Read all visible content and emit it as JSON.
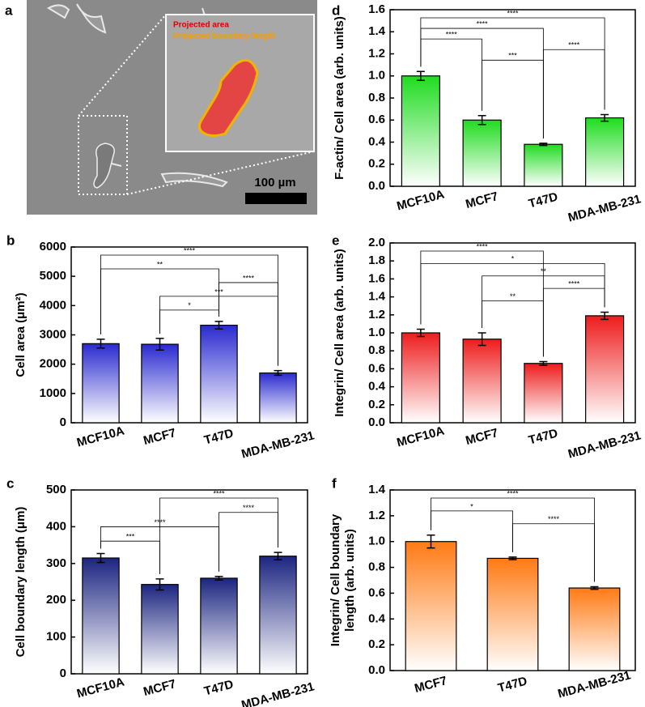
{
  "image_panel": {
    "label": "a",
    "legend": [
      "Projected area",
      "Projected boundary length"
    ],
    "scale_bar": "100 µm"
  },
  "chart_data": [
    {
      "type": "bar",
      "label": "b",
      "ylabel": [
        "Cell area (μm²)"
      ],
      "categories": [
        "MCF10A",
        "MCF7",
        "T47D",
        "MDA-MB-231"
      ],
      "values": [
        2700,
        2680,
        3330,
        1700
      ],
      "errors": [
        150,
        200,
        130,
        80
      ],
      "color": "#2a2ad0",
      "ylim": [
        0,
        6000
      ],
      "yticks": [
        0,
        1000,
        2000,
        3000,
        4000,
        5000,
        6000
      ],
      "brackets": [
        {
          "pair": [
            0,
            3
          ],
          "label": "****"
        },
        {
          "pair": [
            0,
            2
          ],
          "label": "**"
        },
        {
          "pair": [
            2,
            3
          ],
          "label": "****"
        },
        {
          "pair": [
            1,
            3
          ],
          "label": "***"
        },
        {
          "pair": [
            1,
            2
          ],
          "label": "*"
        }
      ]
    },
    {
      "type": "bar",
      "label": "c",
      "ylabel": [
        "Cell boundary length (μm)"
      ],
      "categories": [
        "MCF10A",
        "MCF7",
        "T47D",
        "MDA-MB-231"
      ],
      "values": [
        315,
        243,
        260,
        320
      ],
      "errors": [
        12,
        15,
        5,
        10
      ],
      "color": "#1c2580",
      "ylim": [
        0,
        500
      ],
      "yticks": [
        0,
        100,
        200,
        300,
        400,
        500
      ],
      "brackets": [
        {
          "pair": [
            1,
            3
          ],
          "label": "****"
        },
        {
          "pair": [
            2,
            3
          ],
          "label": "****"
        },
        {
          "pair": [
            0,
            2
          ],
          "label": "****"
        },
        {
          "pair": [
            0,
            1
          ],
          "label": "***"
        }
      ]
    },
    {
      "type": "bar",
      "label": "d",
      "ylabel": [
        "F-actin/ Cell area (arb. units)"
      ],
      "categories": [
        "MCF10A",
        "MCF7",
        "T47D",
        "MDA-MB-231"
      ],
      "values": [
        1.0,
        0.6,
        0.38,
        0.62
      ],
      "errors": [
        0.04,
        0.04,
        0.01,
        0.03
      ],
      "color": "#1fdc1f",
      "ylim": [
        0,
        1.6
      ],
      "yticks": [
        {
          "value": 0,
          "label": "0.0"
        },
        0.2,
        0.4,
        0.6,
        0.8,
        {
          "value": 1,
          "label": "1.0"
        },
        1.2,
        1.4,
        1.6
      ],
      "brackets": [
        {
          "pair": [
            0,
            3
          ],
          "label": "****"
        },
        {
          "pair": [
            0,
            2
          ],
          "label": "****"
        },
        {
          "pair": [
            0,
            1
          ],
          "label": "****"
        },
        {
          "pair": [
            2,
            3
          ],
          "label": "****"
        },
        {
          "pair": [
            1,
            2
          ],
          "label": "***"
        }
      ]
    },
    {
      "type": "bar",
      "label": "e",
      "ylabel": [
        "Integrin/ Cell area (arb. units)"
      ],
      "categories": [
        "MCF10A",
        "MCF7",
        "T47D",
        "MDA-MB-231"
      ],
      "values": [
        1.0,
        0.93,
        0.66,
        1.19
      ],
      "errors": [
        0.04,
        0.07,
        0.02,
        0.04
      ],
      "color": "#ee1c1c",
      "ylim": [
        0,
        2
      ],
      "yticks": [
        {
          "value": 0,
          "label": "0.0"
        },
        0.2,
        0.4,
        0.6,
        0.8,
        {
          "value": 1,
          "label": "1.0"
        },
        1.2,
        1.4,
        1.6,
        1.8,
        {
          "value": 2,
          "label": "2.0"
        }
      ],
      "brackets": [
        {
          "pair": [
            0,
            2
          ],
          "label": "****"
        },
        {
          "pair": [
            0,
            3
          ],
          "label": "*"
        },
        {
          "pair": [
            1,
            3
          ],
          "label": "**"
        },
        {
          "pair": [
            2,
            3
          ],
          "label": "****"
        },
        {
          "pair": [
            1,
            2
          ],
          "label": "**"
        }
      ]
    },
    {
      "type": "bar",
      "label": "f",
      "ylabel": [
        "Integrin/ Cell boundary",
        "length (arb. units)"
      ],
      "categories": [
        "MCF7",
        "T47D",
        "MDA-MB-231"
      ],
      "values": [
        1.0,
        0.87,
        0.64
      ],
      "errors": [
        0.05,
        0.01,
        0.01
      ],
      "color": "#ff7a14",
      "ylim": [
        0,
        1.4
      ],
      "yticks": [
        {
          "value": 0,
          "label": "0.0"
        },
        0.2,
        0.4,
        0.6,
        0.8,
        {
          "value": 1,
          "label": "1.0"
        },
        1.2,
        1.4
      ],
      "brackets": [
        {
          "pair": [
            0,
            2
          ],
          "label": "****"
        },
        {
          "pair": [
            0,
            1
          ],
          "label": "*"
        },
        {
          "pair": [
            1,
            2
          ],
          "label": "****"
        }
      ]
    }
  ]
}
